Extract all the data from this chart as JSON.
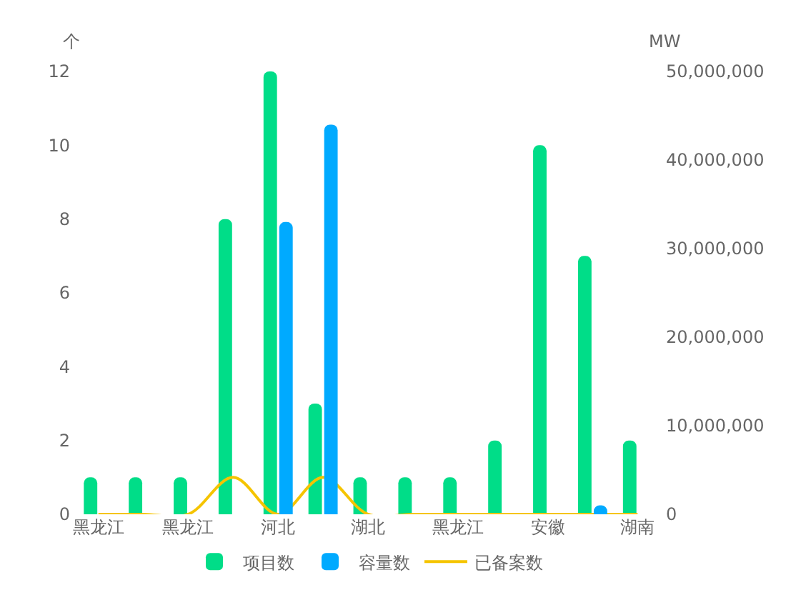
{
  "chart_data": {
    "type": "bar",
    "categories": [
      "黑龙江",
      null,
      "黑龙江",
      null,
      "河北",
      null,
      "湖北",
      null,
      "黑龙江",
      null,
      "安徽",
      null,
      "湖南"
    ],
    "series": [
      {
        "name": "项目数",
        "color": "#00dd88",
        "values": [
          1,
          1,
          1,
          8,
          12,
          3,
          1,
          1,
          1,
          2,
          10,
          7,
          2
        ]
      },
      {
        "name": "容量数",
        "axis": "y2",
        "color": "#00aaff",
        "values": [
          0,
          0,
          0,
          0,
          33000000,
          44000000,
          0,
          0,
          0,
          0,
          0,
          1000000,
          0
        ]
      },
      {
        "name": "已备案数",
        "type": "line",
        "color": "#f5c400",
        "marker": "none",
        "values": [
          0,
          0,
          0,
          1,
          0,
          1,
          0,
          0,
          0,
          0,
          0,
          0,
          0
        ]
      }
    ],
    "ylabel": "个",
    "y2label": "MW",
    "ylim": [
      0,
      12
    ],
    "yticks": [
      0,
      2,
      4,
      6,
      8,
      10,
      12
    ],
    "y2lim": [
      0,
      50000000
    ],
    "y2ticks": [
      {
        "value": 0,
        "label": "0"
      },
      {
        "value": 10000000,
        "label": "10,000,000"
      },
      {
        "value": 20000000,
        "label": "20,000,000"
      },
      {
        "value": 30000000,
        "label": "30,000,000"
      },
      {
        "value": 40000000,
        "label": "40,000,000"
      },
      {
        "value": 50000000,
        "label": "50,000,000"
      }
    ],
    "grid": false,
    "legend": "bottom"
  }
}
